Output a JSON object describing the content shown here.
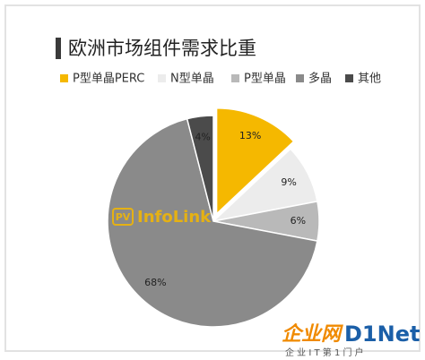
{
  "chart_data": {
    "type": "pie",
    "title": "欧洲市场组件需求比重",
    "categories": [
      "P型单晶PERC",
      "N型单晶",
      "P型单晶",
      "多晶",
      "其他"
    ],
    "values": [
      13,
      9,
      6,
      68,
      4
    ],
    "value_labels": [
      "13%",
      "9%",
      "6%",
      "68%",
      "4%"
    ],
    "colors": [
      "#f5b800",
      "#ececec",
      "#b9b9b9",
      "#8a8a8a",
      "#4b4b4b"
    ],
    "exploded": [
      0
    ]
  },
  "watermarks": {
    "logo_pv": "PV",
    "logo_name": "InfoLink",
    "site_cn": "企业网",
    "site_en": "D1Net",
    "site_tagline": "企 业 I T 第 1 门 户"
  }
}
